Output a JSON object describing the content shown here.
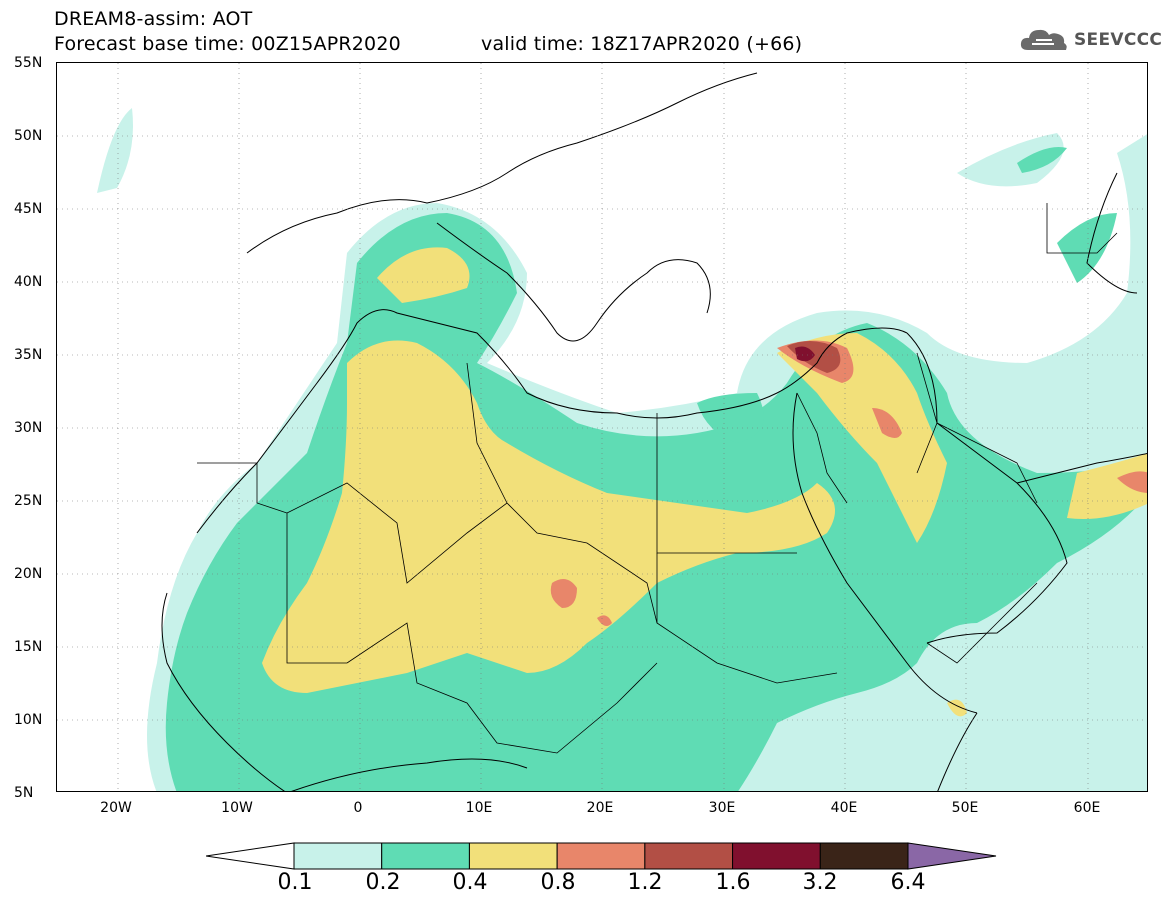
{
  "header": {
    "line1": "DREAM8-assim: AOT",
    "line2": "Forecast base time: 00Z15APR2020",
    "valid": "valid time: 18Z17APR2020 (+66)",
    "logo_text": "SEEVCCC",
    "logo_icon": "cloud-icon"
  },
  "map": {
    "lat_labels": [
      "55N",
      "50N",
      "45N",
      "40N",
      "35N",
      "30N",
      "25N",
      "20N",
      "15N",
      "10N",
      "5N"
    ],
    "lon_labels": [
      "20W",
      "10W",
      "0",
      "10E",
      "20E",
      "30E",
      "40E",
      "50E",
      "60E"
    ],
    "lon_range": [
      -25,
      65
    ],
    "lat_range": [
      5,
      55
    ]
  },
  "colorbar": {
    "labels": [
      "0.1",
      "0.2",
      "0.4",
      "0.8",
      "1.2",
      "1.6",
      "3.2",
      "6.4"
    ],
    "colors": [
      "#c8f2ea",
      "#5fdcb4",
      "#f2e07a",
      "#e8866a",
      "#b24f45",
      "#80102e",
      "#3a2418",
      "#8a67a6"
    ]
  }
}
